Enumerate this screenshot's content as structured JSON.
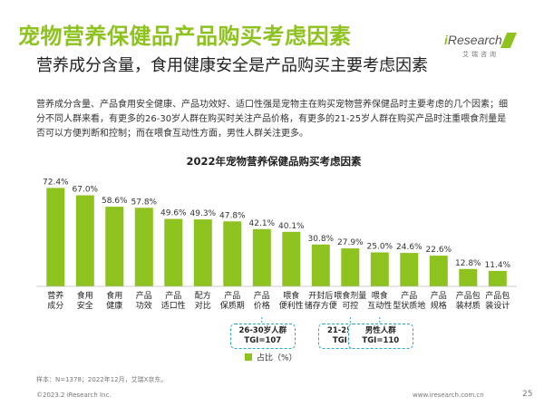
{
  "header": {
    "title": "宠物营养保健品产品购买考虑因素",
    "subtitle": "营养成分含量，食用健康安全是产品购买主要考虑因素",
    "logo_brand_prefix": "i",
    "logo_brand_suffix": "Research",
    "logo_sub": "艾瑞咨询"
  },
  "description": "营养成分含量、产品食用安全健康、产品功效好、适口性强是宠物主在购买宠物营养保健品时主要考虑的几个因素；细分不同人群来看，有更多的26-30岁人群在购买时关注产品价格，有更多的21-25岁人群在购买产品时注重喂食剂量是否可以方便判断和控制；而在喂食互动性方面，男性人群关注更多。",
  "chart_data": {
    "type": "bar",
    "title": "2022年宠物营养保健品购买考虑因素",
    "categories": [
      [
        "营养",
        "成分"
      ],
      [
        "食用",
        "安全"
      ],
      [
        "食用",
        "健康"
      ],
      [
        "产品",
        "功效"
      ],
      [
        "产品",
        "适口性"
      ],
      [
        "配方",
        "对比"
      ],
      [
        "产品",
        "保质期"
      ],
      [
        "产品",
        "价格"
      ],
      [
        "喂食",
        "便利性"
      ],
      [
        "开封后",
        "储存方便"
      ],
      [
        "喂食剂量",
        "可控"
      ],
      [
        "喂食",
        "互动性"
      ],
      [
        "产品",
        "型状质地"
      ],
      [
        "产品",
        "规格"
      ],
      [
        "产品包",
        "装材质"
      ],
      [
        "产品包",
        "装设计"
      ]
    ],
    "values": [
      72.4,
      67.0,
      58.6,
      57.8,
      49.6,
      49.3,
      47.8,
      42.1,
      40.1,
      30.8,
      27.9,
      25.0,
      24.6,
      22.6,
      12.8,
      11.4
    ],
    "value_labels": [
      "72.4%",
      "67.0%",
      "58.6%",
      "57.8%",
      "49.6%",
      "49.3%",
      "47.8%",
      "42.1%",
      "40.1%",
      "30.8%",
      "27.9%",
      "25.0%",
      "24.6%",
      "22.6%",
      "12.8%",
      "11.4%"
    ],
    "ylim": [
      0,
      80
    ],
    "grid": false,
    "legend": {
      "label": "占比（%）",
      "placement": "bottom-center"
    },
    "bar_color": "#8dc21f",
    "callout_color": "#2aa6c7",
    "annotations": [
      {
        "category_index": 7,
        "lines": [
          "26-30岁人群",
          "TGI=107"
        ]
      },
      {
        "category_index": 10,
        "lines": [
          "21-25岁人群",
          "TGI=110"
        ]
      },
      {
        "category_index": 11,
        "lines": [
          "男性人群",
          "TGI=110"
        ]
      }
    ]
  },
  "footer": {
    "source": "样本：N=1378；2022年12月，艾瑞X京东。",
    "copyright": "©2023.2 iResearch Inc.",
    "website": "www.iresearch.com.cn",
    "page": "25"
  }
}
